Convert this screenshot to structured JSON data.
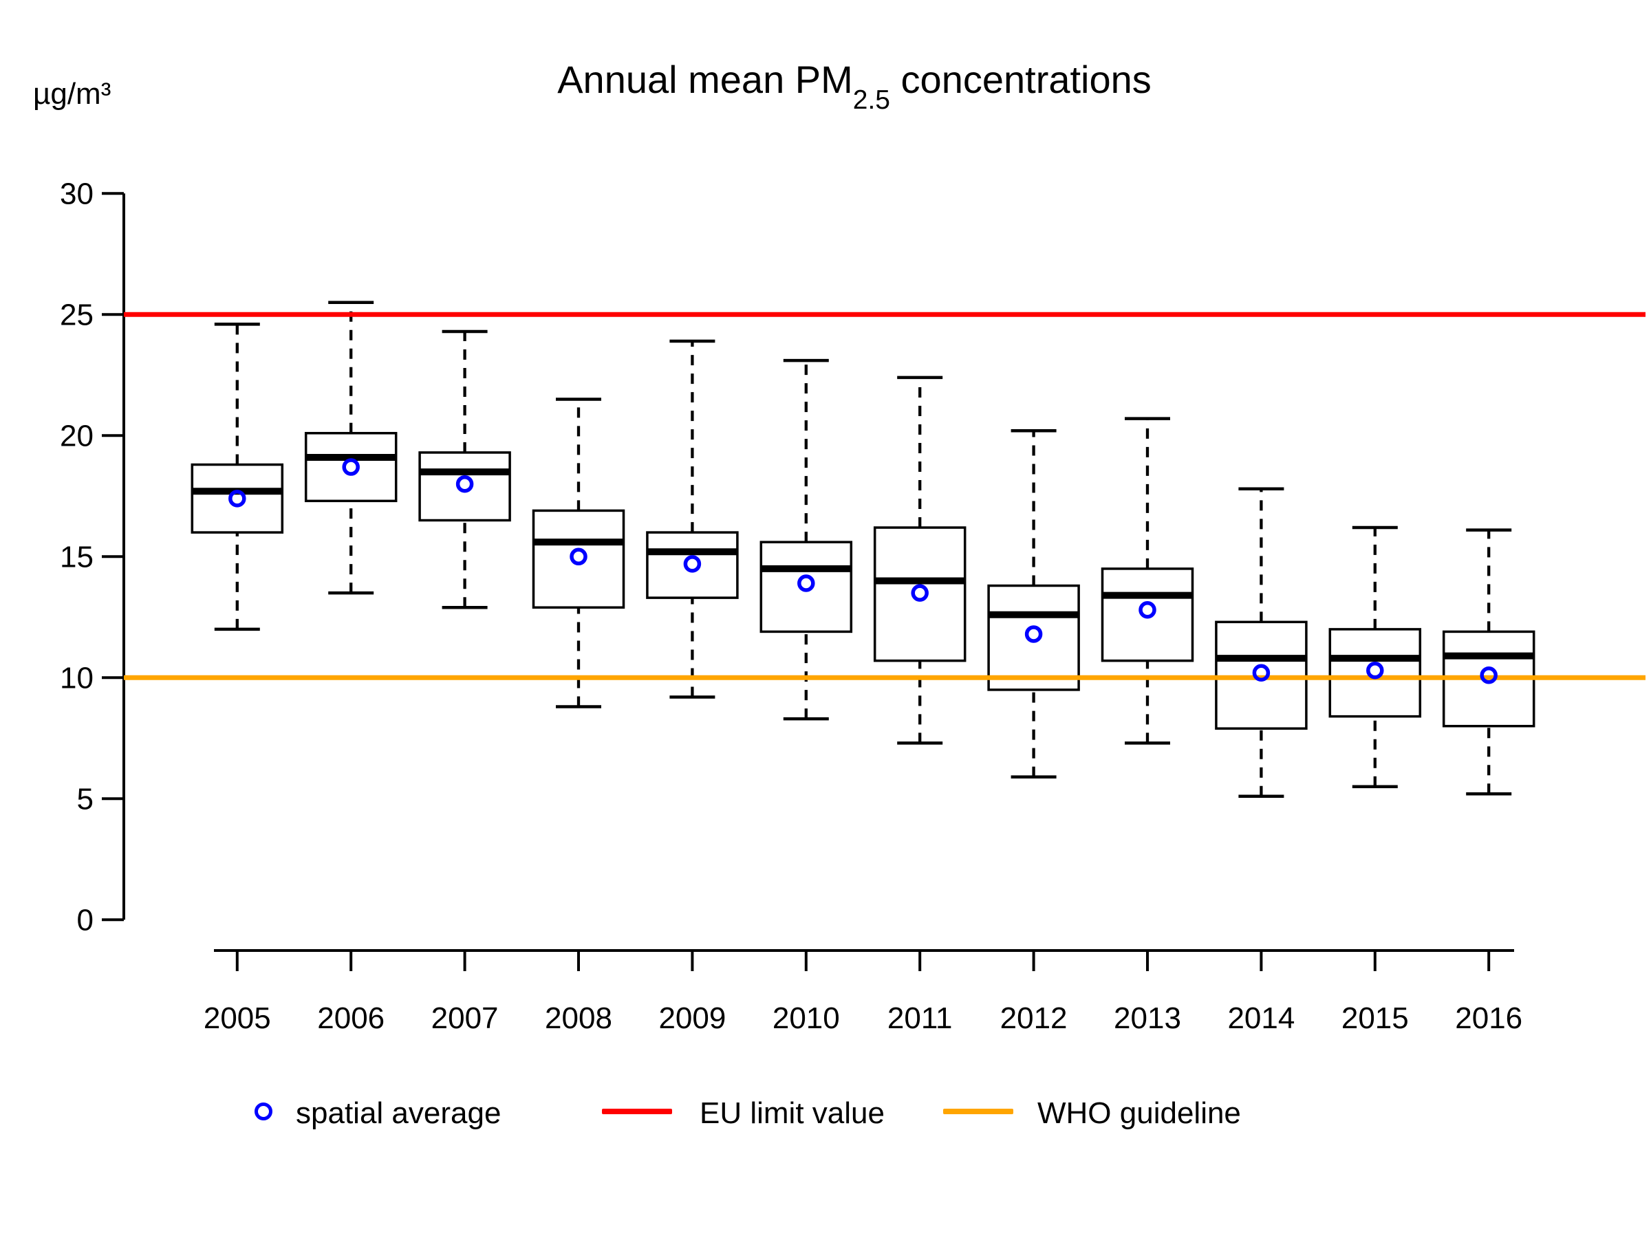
{
  "title": {
    "prefix": "Annual mean PM",
    "subscript": "2.5",
    "suffix": " concentrations"
  },
  "y_axis_unit": "µg/m³",
  "legend": {
    "items": [
      {
        "label": "spatial average",
        "marker": "open-circle",
        "color": "#0000ff"
      },
      {
        "label": "EU limit value",
        "marker": "line",
        "color": "#ff0000"
      },
      {
        "label": "WHO guideline",
        "marker": "line",
        "color": "#ffa500"
      }
    ]
  },
  "colors": {
    "box_border": "#000000",
    "median": "#000000",
    "mean_marker": "#0000ff",
    "eu_limit": "#ff0000",
    "who_guideline": "#ffa500",
    "background": "#ffffff"
  },
  "chart_data": {
    "type": "boxplot",
    "title": "Annual mean PM2.5 concentrations",
    "ylabel": "µg/m³",
    "xlabel": "",
    "ylim": [
      0,
      30
    ],
    "y_ticks": [
      0,
      5,
      10,
      15,
      20,
      25,
      30
    ],
    "grid": false,
    "legend_position": "bottom",
    "categories": [
      "2005",
      "2006",
      "2007",
      "2008",
      "2009",
      "2010",
      "2011",
      "2012",
      "2013",
      "2014",
      "2015",
      "2016"
    ],
    "boxes": [
      {
        "year": "2005",
        "whisker_low": 12.0,
        "q1": 16.0,
        "median": 17.7,
        "q3": 18.8,
        "whisker_high": 24.6,
        "mean": 17.4
      },
      {
        "year": "2006",
        "whisker_low": 13.5,
        "q1": 17.3,
        "median": 19.1,
        "q3": 20.1,
        "whisker_high": 25.5,
        "mean": 18.7
      },
      {
        "year": "2007",
        "whisker_low": 12.9,
        "q1": 16.5,
        "median": 18.5,
        "q3": 19.3,
        "whisker_high": 24.3,
        "mean": 18.0
      },
      {
        "year": "2008",
        "whisker_low": 8.8,
        "q1": 12.9,
        "median": 15.6,
        "q3": 16.9,
        "whisker_high": 21.5,
        "mean": 15.0
      },
      {
        "year": "2009",
        "whisker_low": 9.2,
        "q1": 13.3,
        "median": 15.2,
        "q3": 16.0,
        "whisker_high": 23.9,
        "mean": 14.7
      },
      {
        "year": "2010",
        "whisker_low": 8.3,
        "q1": 11.9,
        "median": 14.5,
        "q3": 15.6,
        "whisker_high": 23.1,
        "mean": 13.9
      },
      {
        "year": "2011",
        "whisker_low": 7.3,
        "q1": 10.7,
        "median": 14.0,
        "q3": 16.2,
        "whisker_high": 22.4,
        "mean": 13.5
      },
      {
        "year": "2012",
        "whisker_low": 5.9,
        "q1": 9.5,
        "median": 12.6,
        "q3": 13.8,
        "whisker_high": 20.2,
        "mean": 11.8
      },
      {
        "year": "2013",
        "whisker_low": 7.3,
        "q1": 10.7,
        "median": 13.4,
        "q3": 14.5,
        "whisker_high": 20.7,
        "mean": 12.8
      },
      {
        "year": "2014",
        "whisker_low": 5.1,
        "q1": 7.9,
        "median": 10.8,
        "q3": 12.3,
        "whisker_high": 17.8,
        "mean": 10.2
      },
      {
        "year": "2015",
        "whisker_low": 5.5,
        "q1": 8.4,
        "median": 10.8,
        "q3": 12.0,
        "whisker_high": 16.2,
        "mean": 10.3
      },
      {
        "year": "2016",
        "whisker_low": 5.2,
        "q1": 8.0,
        "median": 10.9,
        "q3": 11.9,
        "whisker_high": 16.1,
        "mean": 10.1
      }
    ],
    "reference_lines": [
      {
        "name": "EU limit value",
        "value": 25,
        "color": "#ff0000"
      },
      {
        "name": "WHO guideline",
        "value": 10,
        "color": "#ffa500"
      }
    ]
  }
}
